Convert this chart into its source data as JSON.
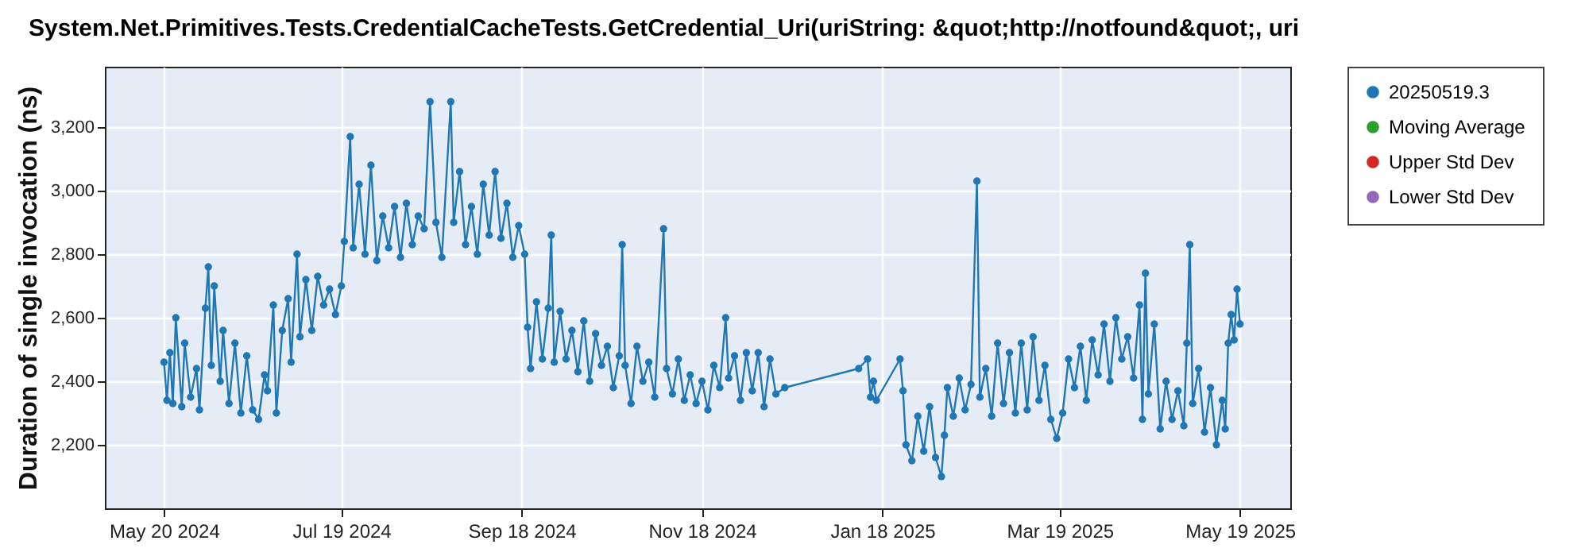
{
  "chart_data": {
    "type": "line",
    "title": "System.Net.Primitives.Tests.CredentialCacheTests.GetCredential_Uri(uriString: &quot;http://notfound&quot;, uri",
    "ylabel": "Duration of single invocation (ns)",
    "x": [
      "2024-05-20",
      "2024-05-21",
      "2024-05-22",
      "2024-05-23",
      "2024-05-24",
      "2024-05-26",
      "2024-05-27",
      "2024-05-29",
      "2024-05-31",
      "2024-06-01",
      "2024-06-03",
      "2024-06-04",
      "2024-06-05",
      "2024-06-06",
      "2024-06-08",
      "2024-06-09",
      "2024-06-11",
      "2024-06-13",
      "2024-06-15",
      "2024-06-17",
      "2024-06-19",
      "2024-06-21",
      "2024-06-23",
      "2024-06-24",
      "2024-06-26",
      "2024-06-27",
      "2024-06-29",
      "2024-07-01",
      "2024-07-02",
      "2024-07-04",
      "2024-07-05",
      "2024-07-07",
      "2024-07-09",
      "2024-07-11",
      "2024-07-13",
      "2024-07-15",
      "2024-07-17",
      "2024-07-19",
      "2024-07-20",
      "2024-07-22",
      "2024-07-23",
      "2024-07-25",
      "2024-07-27",
      "2024-07-29",
      "2024-07-31",
      "2024-08-02",
      "2024-08-04",
      "2024-08-06",
      "2024-08-08",
      "2024-08-10",
      "2024-08-12",
      "2024-08-14",
      "2024-08-16",
      "2024-08-18",
      "2024-08-20",
      "2024-08-22",
      "2024-08-25",
      "2024-08-26",
      "2024-08-28",
      "2024-08-30",
      "2024-09-01",
      "2024-09-03",
      "2024-09-05",
      "2024-09-07",
      "2024-09-09",
      "2024-09-11",
      "2024-09-13",
      "2024-09-15",
      "2024-09-17",
      "2024-09-19",
      "2024-09-20",
      "2024-09-21",
      "2024-09-23",
      "2024-09-25",
      "2024-09-27",
      "2024-09-28",
      "2024-09-29",
      "2024-10-01",
      "2024-10-03",
      "2024-10-05",
      "2024-10-07",
      "2024-10-09",
      "2024-10-11",
      "2024-10-13",
      "2024-10-15",
      "2024-10-17",
      "2024-10-19",
      "2024-10-21",
      "2024-10-22",
      "2024-10-23",
      "2024-10-25",
      "2024-10-27",
      "2024-10-29",
      "2024-10-31",
      "2024-11-02",
      "2024-11-05",
      "2024-11-06",
      "2024-11-08",
      "2024-11-10",
      "2024-11-12",
      "2024-11-14",
      "2024-11-16",
      "2024-11-18",
      "2024-11-20",
      "2024-11-22",
      "2024-11-24",
      "2024-11-26",
      "2024-11-27",
      "2024-11-29",
      "2024-12-01",
      "2024-12-03",
      "2024-12-05",
      "2024-12-07",
      "2024-12-09",
      "2024-12-11",
      "2024-12-13",
      "2024-12-16",
      "2025-01-10",
      "2025-01-13",
      "2025-01-14",
      "2025-01-15",
      "2025-01-16",
      "2025-01-24",
      "2025-01-25",
      "2025-01-26",
      "2025-01-28",
      "2025-01-30",
      "2025-02-01",
      "2025-02-03",
      "2025-02-05",
      "2025-02-07",
      "2025-02-08",
      "2025-02-09",
      "2025-02-11",
      "2025-02-13",
      "2025-02-15",
      "2025-02-17",
      "2025-02-19",
      "2025-02-20",
      "2025-02-22",
      "2025-02-24",
      "2025-02-26",
      "2025-02-28",
      "2025-03-02",
      "2025-03-04",
      "2025-03-06",
      "2025-03-08",
      "2025-03-10",
      "2025-03-12",
      "2025-03-14",
      "2025-03-16",
      "2025-03-18",
      "2025-03-20",
      "2025-03-22",
      "2025-03-24",
      "2025-03-26",
      "2025-03-28",
      "2025-03-30",
      "2025-04-01",
      "2025-04-03",
      "2025-04-05",
      "2025-04-07",
      "2025-04-09",
      "2025-04-11",
      "2025-04-13",
      "2025-04-15",
      "2025-04-16",
      "2025-04-17",
      "2025-04-18",
      "2025-04-20",
      "2025-04-22",
      "2025-04-24",
      "2025-04-26",
      "2025-04-28",
      "2025-04-30",
      "2025-05-01",
      "2025-05-02",
      "2025-05-03",
      "2025-05-05",
      "2025-05-07",
      "2025-05-09",
      "2025-05-11",
      "2025-05-13",
      "2025-05-14",
      "2025-05-15",
      "2025-05-16",
      "2025-05-17",
      "2025-05-18",
      "2025-05-19"
    ],
    "series": [
      {
        "name": "20250519.3",
        "color": "#1f77b4",
        "values": [
          2460,
          2340,
          2490,
          2330,
          2600,
          2320,
          2520,
          2350,
          2440,
          2310,
          2630,
          2760,
          2450,
          2700,
          2400,
          2560,
          2330,
          2520,
          2300,
          2480,
          2310,
          2280,
          2420,
          2370,
          2640,
          2300,
          2560,
          2660,
          2460,
          2800,
          2540,
          2720,
          2560,
          2730,
          2640,
          2690,
          2610,
          2700,
          2840,
          3170,
          2820,
          3020,
          2800,
          3080,
          2780,
          2920,
          2820,
          2950,
          2790,
          2960,
          2830,
          2920,
          2880,
          3280,
          2900,
          2790,
          3280,
          2900,
          3060,
          2830,
          2950,
          2800,
          3020,
          2860,
          3060,
          2850,
          2960,
          2790,
          2890,
          2800,
          2570,
          2440,
          2650,
          2470,
          2630,
          2860,
          2460,
          2620,
          2470,
          2560,
          2430,
          2590,
          2400,
          2550,
          2450,
          2510,
          2380,
          2480,
          2830,
          2450,
          2330,
          2510,
          2400,
          2460,
          2350,
          2880,
          2440,
          2360,
          2470,
          2340,
          2420,
          2330,
          2400,
          2310,
          2450,
          2380,
          2600,
          2410,
          2480,
          2340,
          2490,
          2370,
          2490,
          2320,
          2470,
          2360,
          2380,
          2440,
          2470,
          2350,
          2400,
          2340,
          2470,
          2370,
          2200,
          2150,
          2290,
          2180,
          2320,
          2160,
          2100,
          2230,
          2380,
          2290,
          2410,
          2310,
          2390,
          3030,
          2350,
          2440,
          2290,
          2520,
          2330,
          2490,
          2300,
          2520,
          2310,
          2540,
          2340,
          2450,
          2280,
          2220,
          2300,
          2470,
          2380,
          2510,
          2340,
          2530,
          2420,
          2580,
          2400,
          2600,
          2470,
          2540,
          2410,
          2640,
          2280,
          2740,
          2360,
          2580,
          2250,
          2400,
          2280,
          2370,
          2260,
          2520,
          2830,
          2330,
          2440,
          2240,
          2380,
          2200,
          2340,
          2250,
          2520,
          2610,
          2530,
          2690,
          2580
        ]
      },
      {
        "name": "Moving Average",
        "color": "#2ca02c",
        "values": [
          null,
          null,
          null,
          null,
          null,
          null,
          null,
          null,
          null,
          null,
          null,
          null,
          null,
          null,
          null,
          null,
          null,
          null,
          null,
          null,
          null,
          null,
          null,
          null,
          null,
          null,
          null,
          null,
          null,
          null,
          null,
          null,
          null,
          null,
          null,
          null,
          null,
          null,
          null,
          null,
          null,
          null,
          null,
          null,
          null,
          null,
          null,
          null,
          null,
          null,
          null,
          null,
          null,
          null,
          null,
          null,
          null,
          null,
          null,
          null,
          null,
          null,
          null,
          null,
          null,
          null,
          null,
          null,
          null,
          null,
          null,
          null,
          null,
          null,
          null,
          null,
          null,
          null,
          null,
          null,
          null,
          null,
          null,
          null,
          null,
          null,
          null,
          null,
          null,
          null,
          null,
          null,
          null,
          null,
          null,
          null,
          null,
          null,
          null,
          null,
          null,
          null,
          null,
          null,
          null,
          null,
          null,
          null,
          null,
          null,
          null,
          null,
          null,
          null,
          null,
          null,
          null,
          null,
          null,
          null,
          null,
          null,
          null,
          null,
          null,
          null,
          null,
          null,
          null,
          null,
          null,
          null,
          null,
          null,
          null,
          null,
          null,
          null,
          null,
          null,
          null,
          null,
          null,
          null,
          null,
          null,
          null,
          null,
          null,
          null,
          null,
          null,
          null,
          null,
          null,
          null,
          null,
          null,
          null,
          null,
          null,
          null,
          null,
          null,
          null,
          null,
          null,
          null,
          null,
          null,
          null,
          null,
          null,
          null,
          null,
          null,
          null,
          null,
          null,
          null,
          null,
          null,
          null,
          null,
          null,
          null,
          null,
          null,
          null
        ]
      },
      {
        "name": "Upper Std Dev",
        "color": "#d62728",
        "values": [
          null,
          null,
          null,
          null,
          null,
          null,
          null,
          null,
          null,
          null,
          null,
          null,
          null,
          null,
          null,
          null,
          null,
          null,
          null,
          null,
          null,
          null,
          null,
          null,
          null,
          null,
          null,
          null,
          null,
          null,
          null,
          null,
          null,
          null,
          null,
          null,
          null,
          null,
          null,
          null,
          null,
          null,
          null,
          null,
          null,
          null,
          null,
          null,
          null,
          null,
          null,
          null,
          null,
          null,
          null,
          null,
          null,
          null,
          null,
          null,
          null,
          null,
          null,
          null,
          null,
          null,
          null,
          null,
          null,
          null,
          null,
          null,
          null,
          null,
          null,
          null,
          null,
          null,
          null,
          null,
          null,
          null,
          null,
          null,
          null,
          null,
          null,
          null,
          null,
          null,
          null,
          null,
          null,
          null,
          null,
          null,
          null,
          null,
          null,
          null,
          null,
          null,
          null,
          null,
          null,
          null,
          null,
          null,
          null,
          null,
          null,
          null,
          null,
          null,
          null,
          null,
          null,
          null,
          null,
          null,
          null,
          null,
          null,
          null,
          null,
          null,
          null,
          null,
          null,
          null,
          null,
          null,
          null,
          null,
          null,
          null,
          null,
          null,
          null,
          null,
          null,
          null,
          null,
          null,
          null,
          null,
          null,
          null,
          null,
          null,
          null,
          null,
          null,
          null,
          null,
          null,
          null,
          null,
          null,
          null,
          null,
          null,
          null,
          null,
          null,
          null,
          null,
          null,
          null,
          null,
          null,
          null,
          null,
          null,
          null,
          null,
          null,
          null,
          null,
          null,
          null,
          null,
          null,
          null,
          null,
          null,
          null,
          null,
          null
        ]
      },
      {
        "name": "Lower Std Dev",
        "color": "#9467bd",
        "values": [
          null,
          null,
          null,
          null,
          null,
          null,
          null,
          null,
          null,
          null,
          null,
          null,
          null,
          null,
          null,
          null,
          null,
          null,
          null,
          null,
          null,
          null,
          null,
          null,
          null,
          null,
          null,
          null,
          null,
          null,
          null,
          null,
          null,
          null,
          null,
          null,
          null,
          null,
          null,
          null,
          null,
          null,
          null,
          null,
          null,
          null,
          null,
          null,
          null,
          null,
          null,
          null,
          null,
          null,
          null,
          null,
          null,
          null,
          null,
          null,
          null,
          null,
          null,
          null,
          null,
          null,
          null,
          null,
          null,
          null,
          null,
          null,
          null,
          null,
          null,
          null,
          null,
          null,
          null,
          null,
          null,
          null,
          null,
          null,
          null,
          null,
          null,
          null,
          null,
          null,
          null,
          null,
          null,
          null,
          null,
          null,
          null,
          null,
          null,
          null,
          null,
          null,
          null,
          null,
          null,
          null,
          null,
          null,
          null,
          null,
          null,
          null,
          null,
          null,
          null,
          null,
          null,
          null,
          null,
          null,
          null,
          null,
          null,
          null,
          null,
          null,
          null,
          null,
          null,
          null,
          null,
          null,
          null,
          null,
          null,
          null,
          null,
          null,
          null,
          null,
          null,
          null,
          null,
          null,
          null,
          null,
          null,
          null,
          null,
          null,
          null,
          null,
          null,
          null,
          null,
          null,
          null,
          null,
          null,
          null,
          null,
          null,
          null,
          null,
          null,
          null,
          null,
          null,
          null,
          null,
          null,
          null,
          null,
          null,
          null,
          null,
          null,
          null,
          null,
          null,
          null,
          null,
          null,
          null,
          null,
          null,
          null,
          null,
          null
        ]
      }
    ],
    "xlim": [
      "2024-04-30",
      "2025-06-05"
    ],
    "xticks": [
      {
        "value": "2024-05-20",
        "label": "May 20 2024"
      },
      {
        "value": "2024-07-19",
        "label": "Jul 19 2024"
      },
      {
        "value": "2024-09-18",
        "label": "Sep 18 2024"
      },
      {
        "value": "2024-11-18",
        "label": "Nov 18 2024"
      },
      {
        "value": "2025-01-18",
        "label": "Jan 18 2025"
      },
      {
        "value": "2025-03-19",
        "label": "Mar 19 2025"
      },
      {
        "value": "2025-05-19",
        "label": "May 19 2025"
      }
    ],
    "ylim": [
      2000,
      3390
    ],
    "yticks": [
      {
        "value": 2200,
        "label": "2,200"
      },
      {
        "value": 2400,
        "label": "2,400"
      },
      {
        "value": 2600,
        "label": "2,600"
      },
      {
        "value": 2800,
        "label": "2,800"
      },
      {
        "value": 3000,
        "label": "3,000"
      },
      {
        "value": 3200,
        "label": "3,200"
      }
    ],
    "grid": true,
    "legend": "right",
    "marker": "circle",
    "line_style": "solid"
  }
}
